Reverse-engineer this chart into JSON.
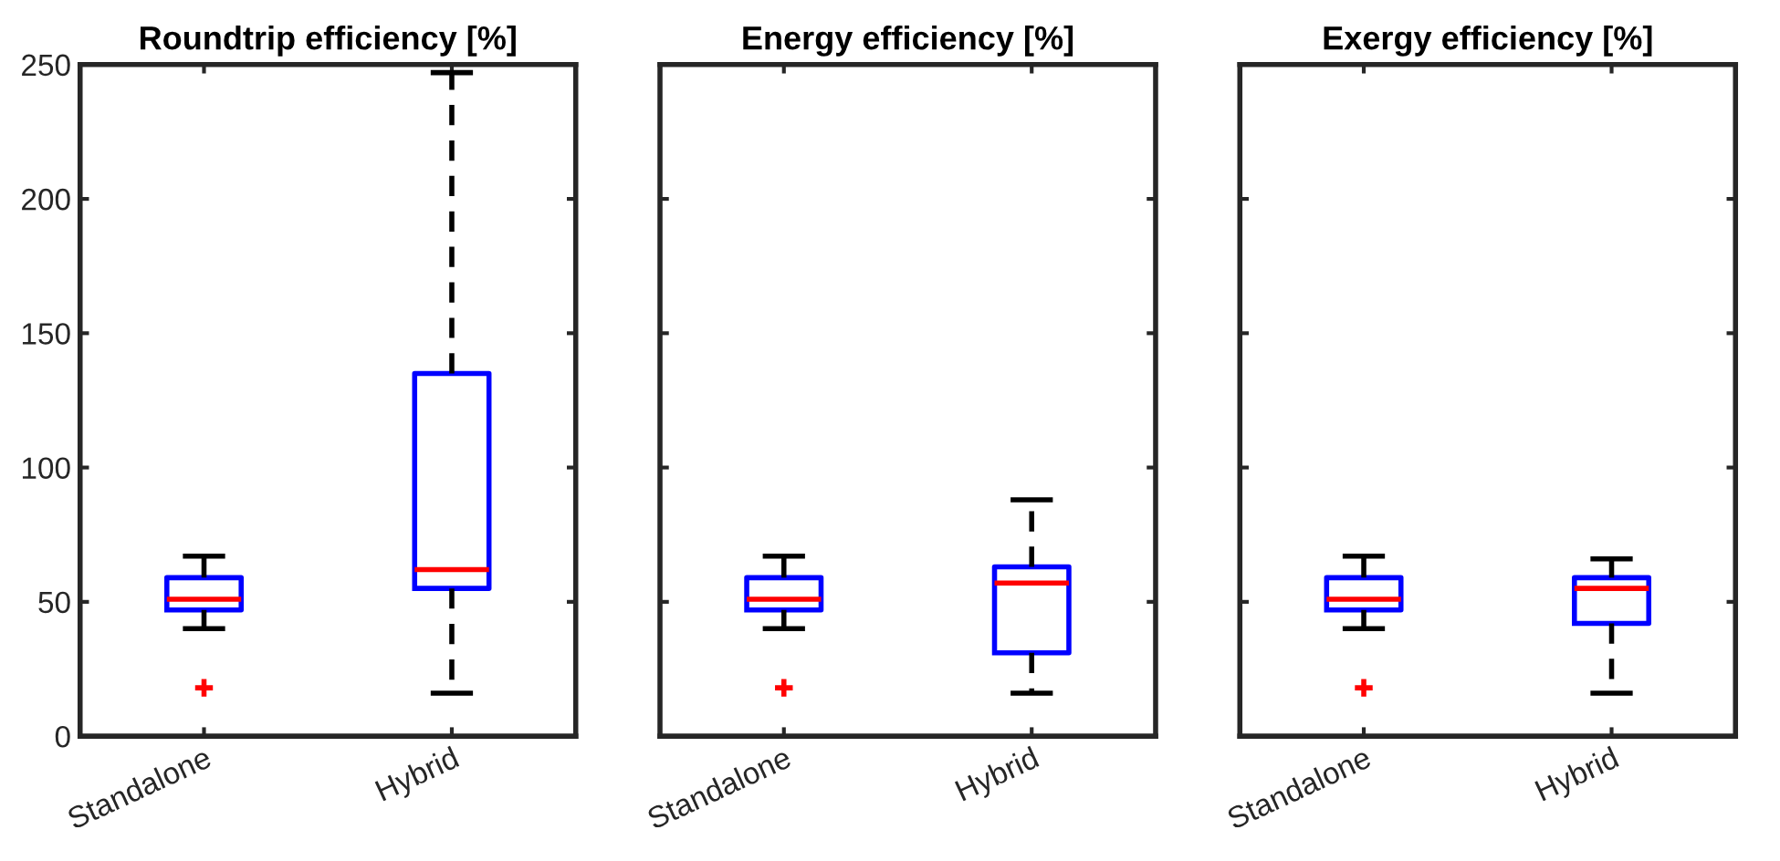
{
  "chart_data": [
    {
      "type": "box",
      "title": "Roundtrip efficiency [%]",
      "categories": [
        "Standalone",
        "Hybrid"
      ],
      "ylim": [
        0,
        250
      ],
      "yticks": [
        0,
        50,
        100,
        150,
        200,
        250
      ],
      "grid": false,
      "color": "#0000ff",
      "line_style": "dashed",
      "boxes": [
        {
          "low": 40,
          "q1": 47,
          "median": 51,
          "q3": 59,
          "high": 67,
          "outliers": [
            18
          ]
        },
        {
          "low": 16,
          "q1": 55,
          "median": 62,
          "q3": 135,
          "high": 247
        }
      ]
    },
    {
      "type": "box",
      "title": "Energy efficiency [%]",
      "categories": [
        "Standalone",
        "Hybrid"
      ],
      "ylim": [
        0,
        250
      ],
      "yticks": [
        0,
        50,
        100,
        150,
        200,
        250
      ],
      "tick_labels": "x",
      "grid": false,
      "color": "#0000ff",
      "line_style": "dashed",
      "boxes": [
        {
          "low": 40,
          "q1": 47,
          "median": 51,
          "q3": 59,
          "high": 67,
          "outliers": [
            18
          ]
        },
        {
          "low": 16,
          "q1": 31,
          "median": 57,
          "q3": 63,
          "high": 88
        }
      ]
    },
    {
      "type": "box",
      "title": "Exergy efficiency [%]",
      "categories": [
        "Standalone",
        "Hybrid"
      ],
      "ylim": [
        0,
        250
      ],
      "yticks": [
        0,
        50,
        100,
        150,
        200,
        250
      ],
      "tick_labels": "x",
      "grid": false,
      "color": "#0000ff",
      "line_style": "dashed",
      "boxes": [
        {
          "low": 40,
          "q1": 47,
          "median": 51,
          "q3": 59,
          "high": 67,
          "outliers": [
            18
          ]
        },
        {
          "low": 16,
          "q1": 42,
          "median": 55,
          "q3": 59,
          "high": 66
        }
      ]
    }
  ]
}
